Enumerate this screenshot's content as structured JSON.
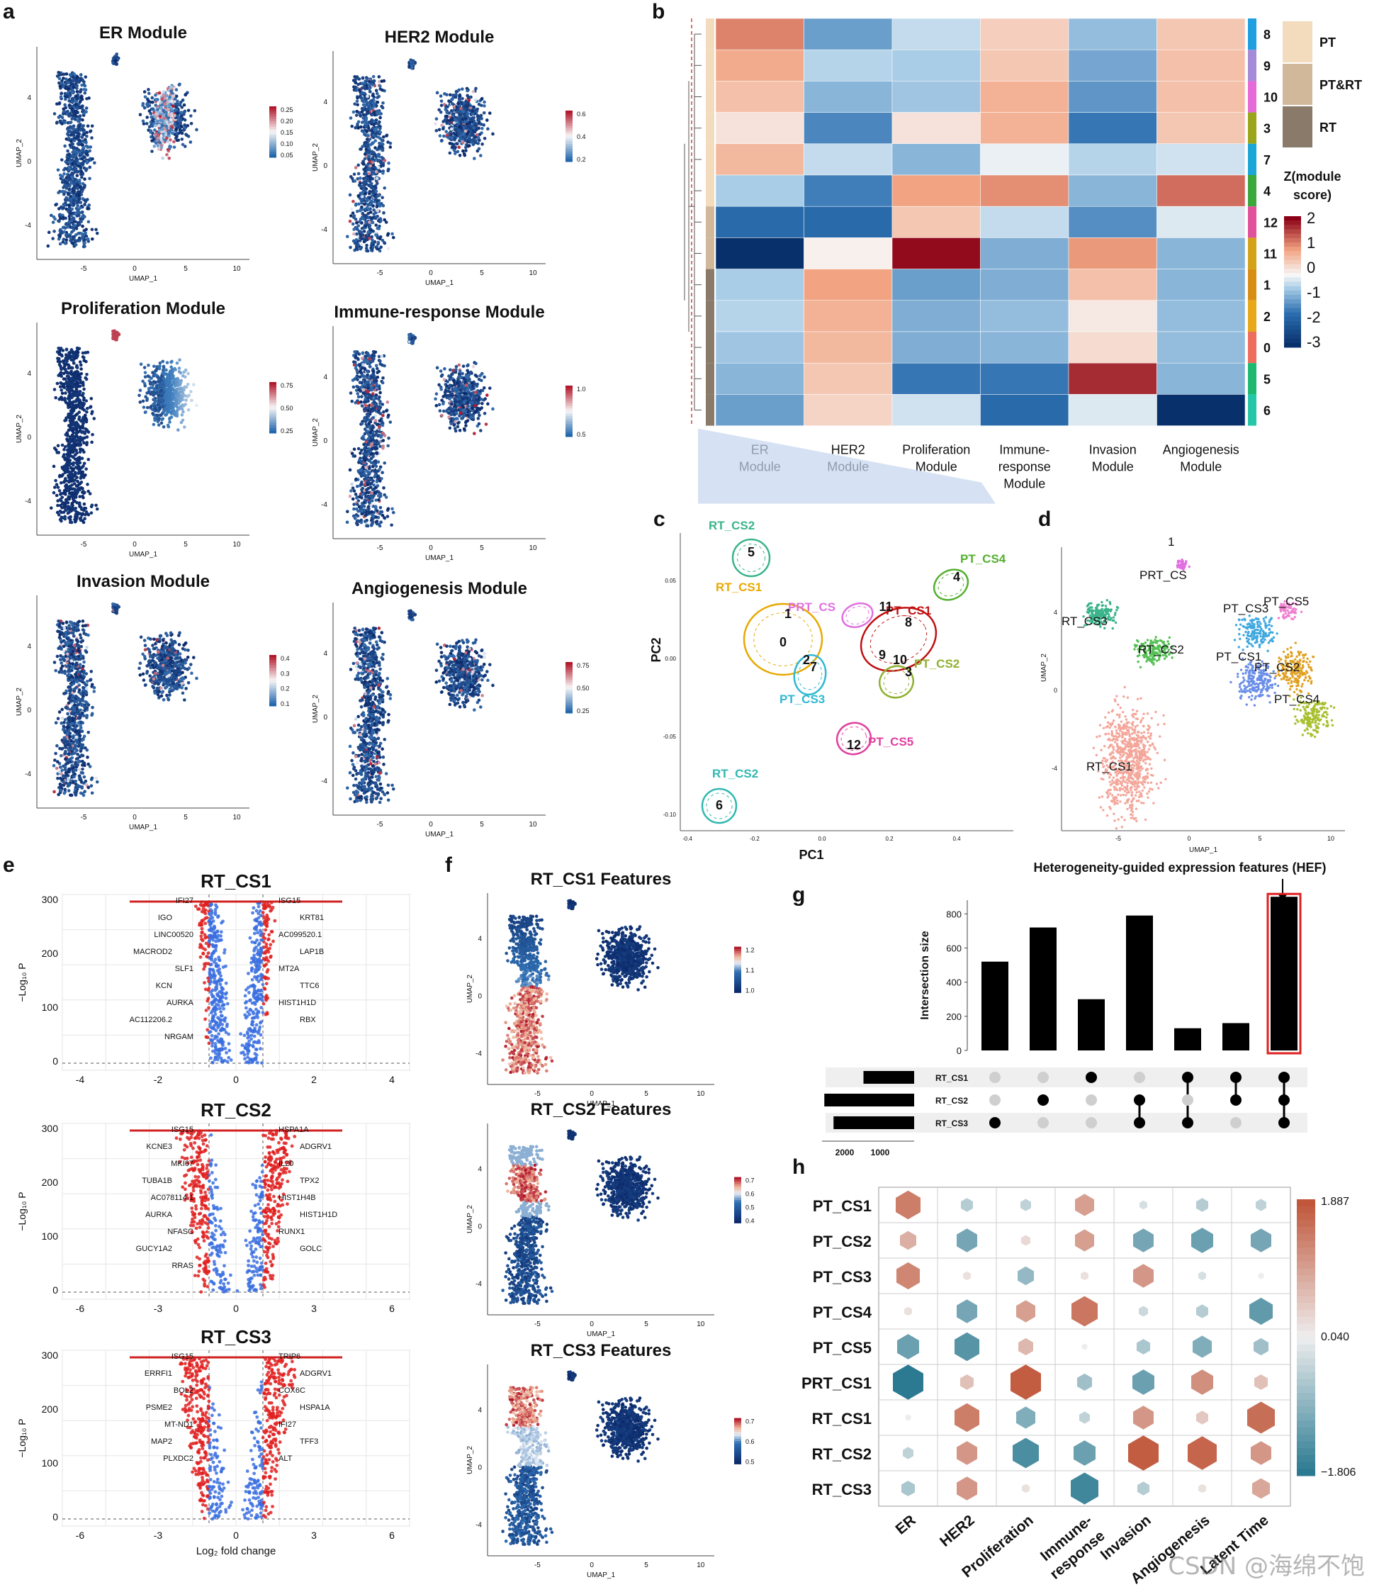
{
  "panel_letters": [
    "a",
    "b",
    "c",
    "d",
    "e",
    "f",
    "g",
    "h"
  ],
  "umap_axis": {
    "x_label": "UMAP_1",
    "y_label": "UMAP_2",
    "x_ticks": [
      "-5",
      "0",
      "5",
      "10"
    ],
    "y_ticks": [
      "4",
      "0",
      "-4"
    ]
  },
  "panel_a": {
    "plots": [
      {
        "title": "ER Module",
        "legend": [
          "0.25",
          "0.20",
          "0.15",
          "0.10",
          "0.05"
        ]
      },
      {
        "title": "HER2 Module",
        "legend": [
          "0.6",
          "0.4",
          "0.2"
        ]
      },
      {
        "title": "Proliferation Module",
        "legend": [
          "0.75",
          "0.50",
          "0.25"
        ]
      },
      {
        "title": "Immune-response Module",
        "legend": [
          "1.0",
          "0.5"
        ]
      },
      {
        "title": "Invasion Module",
        "legend": [
          "0.4",
          "0.3",
          "0.2",
          "0.1"
        ]
      },
      {
        "title": "Angiogenesis Module",
        "legend": [
          "0.75",
          "0.50",
          "0.25"
        ]
      }
    ]
  },
  "panel_b": {
    "clusters": [
      "8",
      "9",
      "10",
      "3",
      "7",
      "4",
      "12",
      "11",
      "1",
      "2",
      "0",
      "5",
      "6"
    ],
    "columns": [
      "ER\nModule",
      "HER2\nModule",
      "Proliferation\nModule",
      "Immune-\nresponse\nModule",
      "Invasion\nModule",
      "Angiogenesis\nModule"
    ],
    "values": [
      [
        1.8,
        -0.9,
        -0.1,
        0.9,
        -0.5,
        1.0
      ],
      [
        1.4,
        -0.2,
        -0.3,
        1.0,
        -0.8,
        1.1
      ],
      [
        1.1,
        -0.6,
        -0.4,
        1.3,
        -1.0,
        1.1
      ],
      [
        0.6,
        -1.2,
        0.6,
        1.3,
        -1.4,
        1.0
      ],
      [
        1.2,
        -0.1,
        -0.6,
        0.2,
        -0.2,
        0.0
      ],
      [
        -0.3,
        -1.3,
        1.5,
        1.7,
        -0.6,
        2.0
      ],
      [
        -1.6,
        -1.6,
        1.0,
        -0.1,
        -1.1,
        0.1
      ],
      [
        -3.0,
        0.4,
        2.9,
        -0.7,
        1.6,
        -0.6
      ],
      [
        -0.3,
        1.5,
        -0.9,
        -0.7,
        1.1,
        -0.6
      ],
      [
        -0.2,
        1.3,
        -0.7,
        -0.5,
        0.5,
        -0.5
      ],
      [
        -0.4,
        1.2,
        -0.7,
        -0.6,
        0.7,
        -0.5
      ],
      [
        -0.6,
        1.0,
        -1.4,
        -1.4,
        2.6,
        -0.6
      ],
      [
        -0.9,
        0.8,
        0.0,
        -1.6,
        0.1,
        -3.0
      ]
    ],
    "cluster_colors": [
      "#1e9fe0",
      "#a58ad8",
      "#e66ad8",
      "#9aa51a",
      "#1aa6d6",
      "#3aa83a",
      "#e0529a",
      "#d4a21a",
      "#d88e15",
      "#e8a81a",
      "#ee6e5e",
      "#1fb870",
      "#25c7a8"
    ],
    "group_legend": [
      {
        "label": "PT",
        "color": "#f3dcbd"
      },
      {
        "label": "PT&RT",
        "color": "#d1b89a"
      },
      {
        "label": "RT",
        "color": "#8a7a6a"
      }
    ],
    "scale_title": "Z(module\nscore)",
    "scale_ticks": [
      "2",
      "1",
      "0",
      "-1",
      "-2",
      "-3"
    ]
  },
  "panel_c": {
    "x_label": "PC1",
    "y_label": "PC2",
    "x_ticks": [
      "-0.4",
      "-0.2",
      "0.0",
      "0.2",
      "0.4"
    ],
    "y_ticks": [
      "0.05",
      "0.00",
      "-0.05",
      "-0.10"
    ],
    "groups": [
      {
        "label": "RT_CS2",
        "color": "#3ab48a"
      },
      {
        "label": "RT_CS1",
        "color": "#e8a800"
      },
      {
        "label": "PRT_CS",
        "color": "#e070e0"
      },
      {
        "label": "PT_CS1",
        "color": "#c01010"
      },
      {
        "label": "PT_CS4",
        "color": "#55b030"
      },
      {
        "label": "PT_CS2",
        "color": "#90b030"
      },
      {
        "label": "PT_CS3",
        "color": "#30b8d0"
      },
      {
        "label": "PT_CS5",
        "color": "#e040a0"
      },
      {
        "label": "RT_CS2",
        "color": "#30b8b0"
      }
    ],
    "points": [
      "5",
      "1",
      "0",
      "2",
      "11",
      "8",
      "9",
      "10",
      "3",
      "7",
      "4",
      "12",
      "6"
    ]
  },
  "panel_d": {
    "x_ticks": [
      "-5",
      "0",
      "5",
      "10"
    ],
    "y_ticks": [
      "4",
      "0",
      "-4"
    ],
    "labels": [
      "1",
      "PRT_CS",
      "RT_CS3",
      "RT_CS2",
      "RT_CS1",
      "PT_CS3",
      "PT_CS5",
      "PT_CS1",
      "PT_CS2",
      "PT_CS4"
    ]
  },
  "panel_e": {
    "y_label": "−Log₁₀ P",
    "x_label": "Log₂ fold change",
    "plots": [
      {
        "title": "RT_CS1",
        "x_ticks": [
          "-4",
          "-2",
          "0",
          "2",
          "4"
        ],
        "y_ticks": [
          "300",
          "200",
          "100",
          "0"
        ],
        "genes": [
          "IFI27",
          "ISG15",
          "IGO",
          "KRT81",
          "LINC00520",
          "AC099520.1",
          "MACROD2",
          "LAP1B",
          "SLF1",
          "MT2A",
          "KCN",
          "TTC6",
          "AURKA",
          "HIST1H1D",
          "AC112206.2",
          "RBX",
          "NRGAM"
        ]
      },
      {
        "title": "RT_CS2",
        "x_ticks": [
          "-6",
          "-3",
          "0",
          "3",
          "6"
        ],
        "y_ticks": [
          "300",
          "200",
          "100",
          "0"
        ],
        "genes": [
          "ISG15",
          "HSPA1A",
          "KCNE3",
          "ADGRV1",
          "MKI67",
          "IL20",
          "TUBA1B",
          "TPX2",
          "AC078114.1",
          "HIST1H4B",
          "AURKA",
          "HIST1H1D",
          "NFASC",
          "RUNX1",
          "GUCY1A2",
          "GOLC",
          "RRAS"
        ]
      },
      {
        "title": "RT_CS3",
        "x_ticks": [
          "-6",
          "-3",
          "0",
          "3",
          "6"
        ],
        "y_ticks": [
          "300",
          "200",
          "100",
          "0"
        ],
        "genes": [
          "ISG15",
          "TRIP6",
          "ERRFI1",
          "ADGRV1",
          "BOL2",
          "COX6C",
          "PSME2",
          "HSPA1A",
          "MT-ND1",
          "IFI27",
          "MAP2",
          "TFF3",
          "PLXDC2",
          "ALT"
        ]
      }
    ]
  },
  "panel_f": {
    "plots": [
      {
        "title": "RT_CS1 Features",
        "legend": [
          "1.2",
          "1.1",
          "1.0"
        ]
      },
      {
        "title": "RT_CS2 Features",
        "legend": [
          "0.7",
          "0.6",
          "0.5",
          "0.4"
        ]
      },
      {
        "title": "RT_CS3 Features",
        "legend": [
          "0.7",
          "0.6",
          "0.5"
        ]
      }
    ]
  },
  "panel_g": {
    "annotation": "Heterogeneity-guided expression features (HEF)",
    "y_label": "Intersection size",
    "y_ticks": [
      "0",
      "200",
      "400",
      "600",
      "800"
    ],
    "sets": [
      "RT_CS1",
      "RT_CS2",
      "RT_CS3"
    ],
    "set_axis_ticks": [
      "2000",
      "1000"
    ],
    "set_sizes": [
      1100,
      1950,
      1750
    ],
    "bars": [
      520,
      720,
      300,
      790,
      130,
      160,
      900
    ],
    "matrix": [
      [
        0,
        0,
        1
      ],
      [
        0,
        1,
        0
      ],
      [
        1,
        0,
        0
      ],
      [
        0,
        1,
        1
      ],
      [
        1,
        0,
        1
      ],
      [
        1,
        1,
        0
      ],
      [
        1,
        1,
        1
      ]
    ]
  },
  "panel_h": {
    "rows": [
      "PT_CS1",
      "PT_CS2",
      "PT_CS3",
      "PT_CS4",
      "PT_CS5",
      "PRT_CS1",
      "RT_CS1",
      "RT_CS2",
      "RT_CS3"
    ],
    "columns": [
      "ER",
      "HER2",
      "Proliferation",
      "Immune-\nresponse",
      "Invasion",
      "Angiogenesis",
      "Latent Time"
    ],
    "values": [
      [
        1.4,
        -0.5,
        -0.4,
        1.0,
        -0.2,
        -0.5,
        -0.4
      ],
      [
        0.8,
        -1.1,
        0.3,
        1.0,
        -1.1,
        -1.2,
        -1.1
      ],
      [
        1.3,
        0.2,
        -0.8,
        0.2,
        1.1,
        -0.2,
        0.05
      ],
      [
        0.2,
        -1.1,
        1.0,
        1.5,
        -0.3,
        -0.5,
        -1.3
      ],
      [
        -1.2,
        -1.4,
        0.7,
        0.05,
        -0.6,
        -1.0,
        -0.7
      ],
      [
        -1.8,
        0.6,
        1.8,
        -0.7,
        -1.2,
        1.2,
        0.6
      ],
      [
        0.05,
        1.4,
        -1.0,
        -0.4,
        1.1,
        0.5,
        1.6
      ],
      [
        -0.4,
        1.1,
        -1.5,
        -1.2,
        1.8,
        1.7,
        1.1
      ],
      [
        -0.6,
        1.1,
        0.2,
        -1.6,
        -0.5,
        0.2,
        0.9
      ]
    ],
    "scale_ticks": [
      "1.887",
      "0.040",
      "−1.806"
    ]
  },
  "watermark": "CSDN @海绵不饱"
}
